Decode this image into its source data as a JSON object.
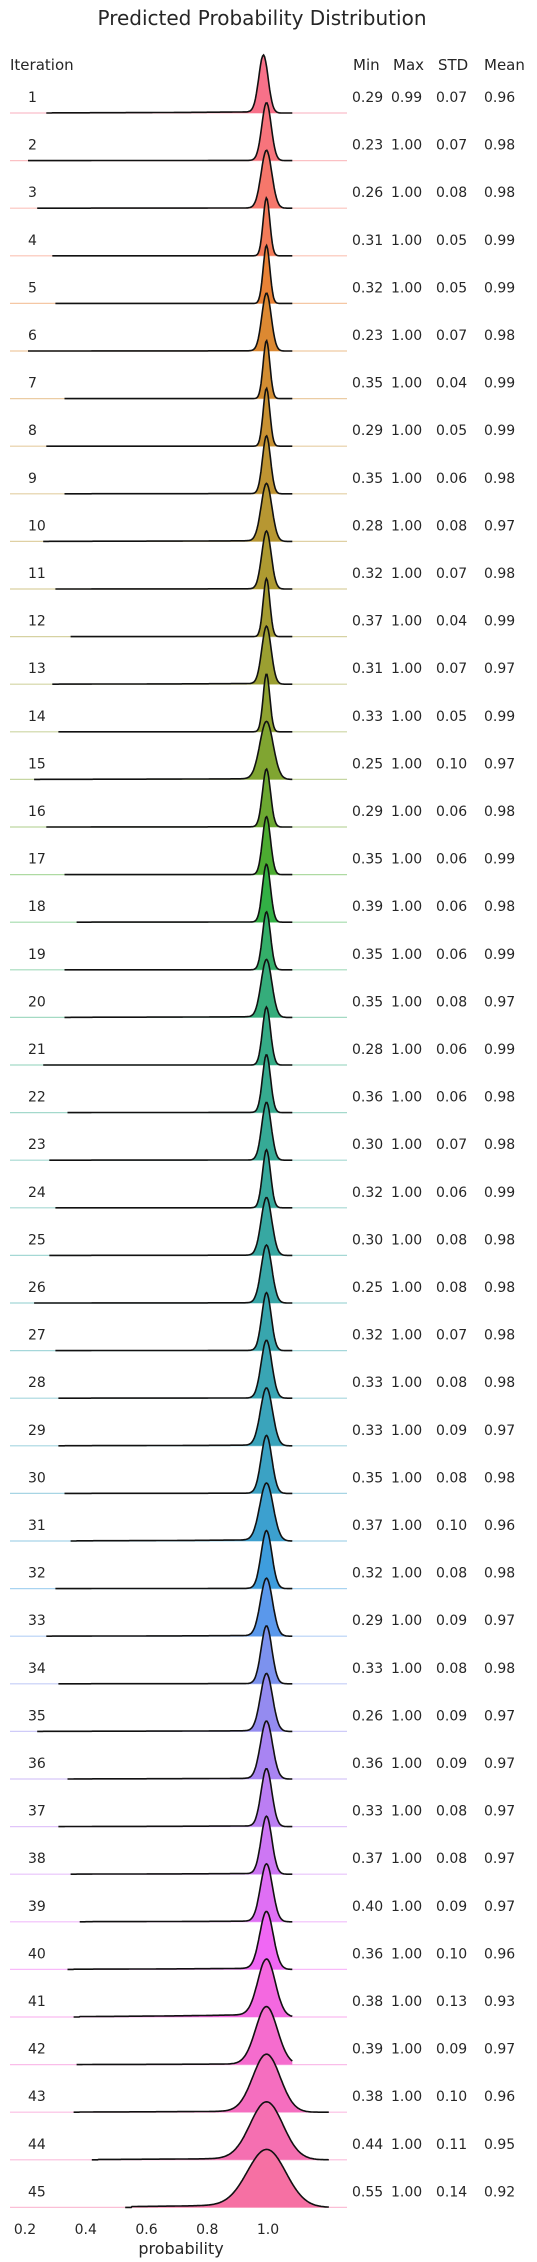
{
  "chart_data": {
    "type": "ridgeline",
    "title": "Predicted Probability Distribution",
    "xlabel": "probability",
    "xticks": [
      0.2,
      0.4,
      0.6,
      0.8,
      1.0
    ],
    "xlim": [
      0.15,
      1.25
    ],
    "grid": false,
    "legend": "none",
    "columns": {
      "iteration": "Iteration",
      "min": "Min",
      "max": "Max",
      "std": "STD",
      "mean": "Mean"
    },
    "rows": [
      {
        "iteration": "1",
        "min": "0.29",
        "max": "0.99",
        "std": "0.07",
        "mean": "0.96",
        "color": "#f77189"
      },
      {
        "iteration": "2",
        "min": "0.23",
        "max": "1.00",
        "std": "0.07",
        "mean": "0.98",
        "color": "#f7747c"
      },
      {
        "iteration": "3",
        "min": "0.26",
        "max": "1.00",
        "std": "0.08",
        "mean": "0.98",
        "color": "#f6776b"
      },
      {
        "iteration": "4",
        "min": "0.31",
        "max": "1.00",
        "std": "0.05",
        "mean": "0.99",
        "color": "#f37b59"
      },
      {
        "iteration": "5",
        "min": "0.32",
        "max": "1.00",
        "std": "0.05",
        "mean": "0.99",
        "color": "#e98236"
      },
      {
        "iteration": "6",
        "min": "0.23",
        "max": "1.00",
        "std": "0.07",
        "mean": "0.98",
        "color": "#dc8932"
      },
      {
        "iteration": "7",
        "min": "0.35",
        "max": "1.00",
        "std": "0.04",
        "mean": "0.99",
        "color": "#d28d32"
      },
      {
        "iteration": "8",
        "min": "0.29",
        "max": "1.00",
        "std": "0.05",
        "mean": "0.99",
        "color": "#c89132"
      },
      {
        "iteration": "9",
        "min": "0.35",
        "max": "1.00",
        "std": "0.06",
        "mean": "0.98",
        "color": "#bf9432"
      },
      {
        "iteration": "10",
        "min": "0.28",
        "max": "1.00",
        "std": "0.08",
        "mean": "0.97",
        "color": "#b79732"
      },
      {
        "iteration": "11",
        "min": "0.32",
        "max": "1.00",
        "std": "0.07",
        "mean": "0.98",
        "color": "#ae9a31"
      },
      {
        "iteration": "12",
        "min": "0.37",
        "max": "1.00",
        "std": "0.04",
        "mean": "0.99",
        "color": "#a59c31"
      },
      {
        "iteration": "13",
        "min": "0.31",
        "max": "1.00",
        "std": "0.07",
        "mean": "0.97",
        "color": "#9b9f31"
      },
      {
        "iteration": "14",
        "min": "0.33",
        "max": "1.00",
        "std": "0.05",
        "mean": "0.99",
        "color": "#8fa231"
      },
      {
        "iteration": "15",
        "min": "0.25",
        "max": "1.00",
        "std": "0.10",
        "mean": "0.97",
        "color": "#80a531"
      },
      {
        "iteration": "16",
        "min": "0.29",
        "max": "1.00",
        "std": "0.06",
        "mean": "0.98",
        "color": "#6ca831"
      },
      {
        "iteration": "17",
        "min": "0.35",
        "max": "1.00",
        "std": "0.06",
        "mean": "0.99",
        "color": "#4cac31"
      },
      {
        "iteration": "18",
        "min": "0.39",
        "max": "1.00",
        "std": "0.06",
        "mean": "0.98",
        "color": "#32b045"
      },
      {
        "iteration": "19",
        "min": "0.35",
        "max": "1.00",
        "std": "0.06",
        "mean": "0.99",
        "color": "#34ae69"
      },
      {
        "iteration": "20",
        "min": "0.35",
        "max": "1.00",
        "std": "0.08",
        "mean": "0.97",
        "color": "#35ad7b"
      },
      {
        "iteration": "21",
        "min": "0.28",
        "max": "1.00",
        "std": "0.06",
        "mean": "0.99",
        "color": "#35ac86"
      },
      {
        "iteration": "22",
        "min": "0.36",
        "max": "1.00",
        "std": "0.06",
        "mean": "0.98",
        "color": "#36ab8f"
      },
      {
        "iteration": "23",
        "min": "0.30",
        "max": "1.00",
        "std": "0.07",
        "mean": "0.98",
        "color": "#36aa96"
      },
      {
        "iteration": "24",
        "min": "0.32",
        "max": "1.00",
        "std": "0.06",
        "mean": "0.99",
        "color": "#37a99c"
      },
      {
        "iteration": "25",
        "min": "0.30",
        "max": "1.00",
        "std": "0.08",
        "mean": "0.98",
        "color": "#37a8a2"
      },
      {
        "iteration": "26",
        "min": "0.25",
        "max": "1.00",
        "std": "0.08",
        "mean": "0.98",
        "color": "#38a7a8"
      },
      {
        "iteration": "27",
        "min": "0.32",
        "max": "1.00",
        "std": "0.07",
        "mean": "0.98",
        "color": "#38a6ae"
      },
      {
        "iteration": "28",
        "min": "0.33",
        "max": "1.00",
        "std": "0.08",
        "mean": "0.98",
        "color": "#39a5b4"
      },
      {
        "iteration": "29",
        "min": "0.33",
        "max": "1.00",
        "std": "0.09",
        "mean": "0.97",
        "color": "#3aa4bb"
      },
      {
        "iteration": "30",
        "min": "0.35",
        "max": "1.00",
        "std": "0.08",
        "mean": "0.98",
        "color": "#3ba2c4"
      },
      {
        "iteration": "31",
        "min": "0.37",
        "max": "1.00",
        "std": "0.10",
        "mean": "0.96",
        "color": "#3ca0cf"
      },
      {
        "iteration": "32",
        "min": "0.32",
        "max": "1.00",
        "std": "0.08",
        "mean": "0.98",
        "color": "#3e9ddd"
      },
      {
        "iteration": "33",
        "min": "0.29",
        "max": "1.00",
        "std": "0.09",
        "mean": "0.97",
        "color": "#5a98eb"
      },
      {
        "iteration": "34",
        "min": "0.33",
        "max": "1.00",
        "std": "0.08",
        "mean": "0.98",
        "color": "#7c92ee"
      },
      {
        "iteration": "35",
        "min": "0.26",
        "max": "1.00",
        "std": "0.09",
        "mean": "0.97",
        "color": "#948bf0"
      },
      {
        "iteration": "36",
        "min": "0.36",
        "max": "1.00",
        "std": "0.09",
        "mean": "0.97",
        "color": "#a884f2"
      },
      {
        "iteration": "37",
        "min": "0.33",
        "max": "1.00",
        "std": "0.08",
        "mean": "0.97",
        "color": "#bb7ef3"
      },
      {
        "iteration": "38",
        "min": "0.37",
        "max": "1.00",
        "std": "0.08",
        "mean": "0.97",
        "color": "#cd77f4"
      },
      {
        "iteration": "39",
        "min": "0.40",
        "max": "1.00",
        "std": "0.09",
        "mean": "0.97",
        "color": "#df6ff4"
      },
      {
        "iteration": "40",
        "min": "0.36",
        "max": "1.00",
        "std": "0.10",
        "mean": "0.96",
        "color": "#f067f4"
      },
      {
        "iteration": "41",
        "min": "0.38",
        "max": "1.00",
        "std": "0.13",
        "mean": "0.93",
        "color": "#f468e0"
      },
      {
        "iteration": "42",
        "min": "0.39",
        "max": "1.00",
        "std": "0.09",
        "mean": "0.97",
        "color": "#f56cce"
      },
      {
        "iteration": "43",
        "min": "0.38",
        "max": "1.00",
        "std": "0.10",
        "mean": "0.96",
        "color": "#f56ebf"
      },
      {
        "iteration": "44",
        "min": "0.44",
        "max": "1.00",
        "std": "0.11",
        "mean": "0.95",
        "color": "#f56fb1"
      },
      {
        "iteration": "45",
        "min": "0.55",
        "max": "1.00",
        "std": "0.14",
        "mean": "0.92",
        "color": "#f670a3"
      }
    ]
  }
}
